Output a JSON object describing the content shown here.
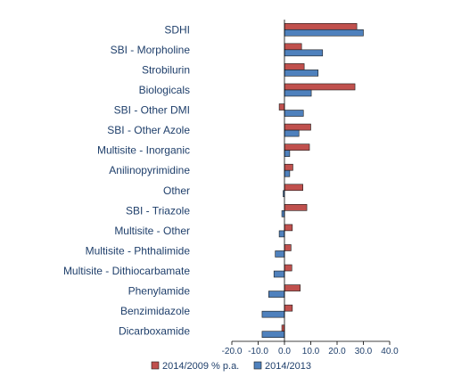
{
  "chart_data": {
    "type": "bar",
    "orientation": "horizontal",
    "title": "",
    "xlabel": "",
    "ylabel": "",
    "categories": [
      "SDHI",
      "SBI - Morpholine",
      "Strobilurin",
      "Biologicals",
      "SBI - Other DMI",
      "SBI - Other Azole",
      "Multisite - Inorganic",
      "Anilinopyrimidine",
      "Other",
      "SBI - Triazole",
      "Multisite - Other",
      "Multisite - Phthalimide",
      "Multisite - Dithiocarbamate",
      "Phenylamide",
      "Benzimidazole",
      "Dicarboxamide"
    ],
    "series": [
      {
        "name": "2014/2009 % p.a.",
        "color": "#c0504d",
        "values": [
          27.5,
          6.5,
          7.5,
          26.8,
          -2.0,
          10.0,
          9.5,
          3.2,
          7.0,
          8.5,
          3.0,
          2.5,
          2.8,
          6.0,
          3.0,
          -1.0
        ]
      },
      {
        "name": "2014/2013",
        "color": "#4f81bd",
        "values": [
          30.0,
          14.5,
          12.8,
          10.2,
          7.2,
          5.5,
          2.0,
          2.0,
          -0.5,
          -1.0,
          -2.0,
          -3.5,
          -4.0,
          -6.0,
          -8.5,
          -8.5
        ]
      }
    ],
    "xlim": [
      -20,
      40
    ],
    "xticks": [
      "-20.0",
      "-10.0",
      "0.0",
      "10.0",
      "20.0",
      "30.0",
      "40.0"
    ],
    "legend_position": "bottom",
    "grid": false
  }
}
